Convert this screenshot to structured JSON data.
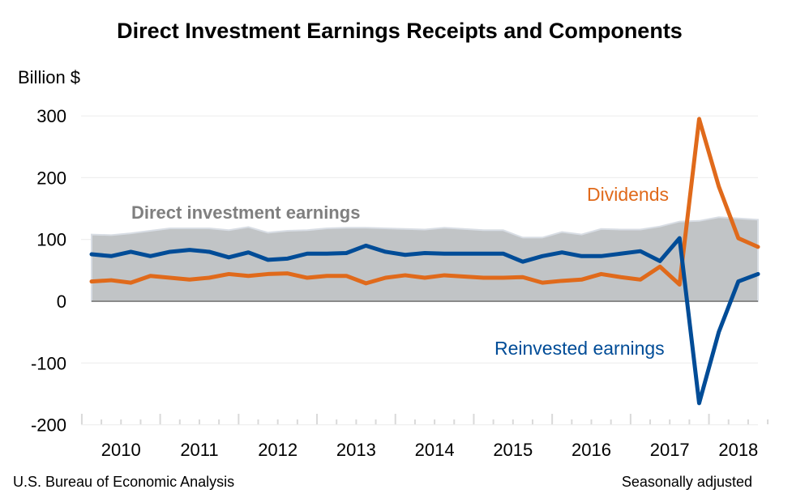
{
  "chart_data": {
    "type": "line",
    "title": "Direct Investment Earnings Receipts and Components",
    "ylabel": "Billion $",
    "ylim": [
      -200,
      300
    ],
    "yticks": [
      300,
      200,
      100,
      0,
      -100,
      -200
    ],
    "ytick_labels": [
      "300",
      "200",
      "100",
      "0",
      "-100",
      "-200"
    ],
    "x_start": "2010 Q1",
    "x_end": "2018 Q3",
    "year_labels": [
      "2010",
      "2011",
      "2012",
      "2013",
      "2014",
      "2015",
      "2016",
      "2017",
      "2018"
    ],
    "grid": true,
    "series": [
      {
        "name": "Direct investment earnings",
        "kind": "area",
        "color": "#C1C4C6",
        "values": [
          108,
          107,
          110,
          114,
          118,
          118,
          118,
          115,
          120,
          111,
          114,
          115,
          118,
          119,
          119,
          118,
          117,
          116,
          119,
          117,
          115,
          115,
          103,
          103,
          112,
          108,
          117,
          116,
          116,
          121,
          129,
          130,
          136,
          134,
          132
        ]
      },
      {
        "name": "Dividends",
        "kind": "line",
        "color": "#E06A1B",
        "values": [
          32,
          34,
          30,
          41,
          38,
          35,
          38,
          44,
          41,
          44,
          45,
          38,
          41,
          41,
          29,
          38,
          42,
          38,
          42,
          40,
          38,
          38,
          39,
          30,
          33,
          35,
          44,
          39,
          35,
          56,
          27,
          295,
          186,
          102,
          88
        ]
      },
      {
        "name": "Reinvested earnings",
        "kind": "line",
        "color": "#004C97",
        "values": [
          76,
          73,
          80,
          73,
          80,
          83,
          80,
          71,
          79,
          67,
          69,
          77,
          77,
          78,
          90,
          80,
          75,
          78,
          77,
          77,
          77,
          77,
          64,
          73,
          79,
          73,
          73,
          77,
          81,
          65,
          102,
          -165,
          -50,
          32,
          44
        ]
      }
    ]
  },
  "footer": {
    "source": "U.S. Bureau of Economic Analysis",
    "note": "Seasonally adjusted"
  }
}
